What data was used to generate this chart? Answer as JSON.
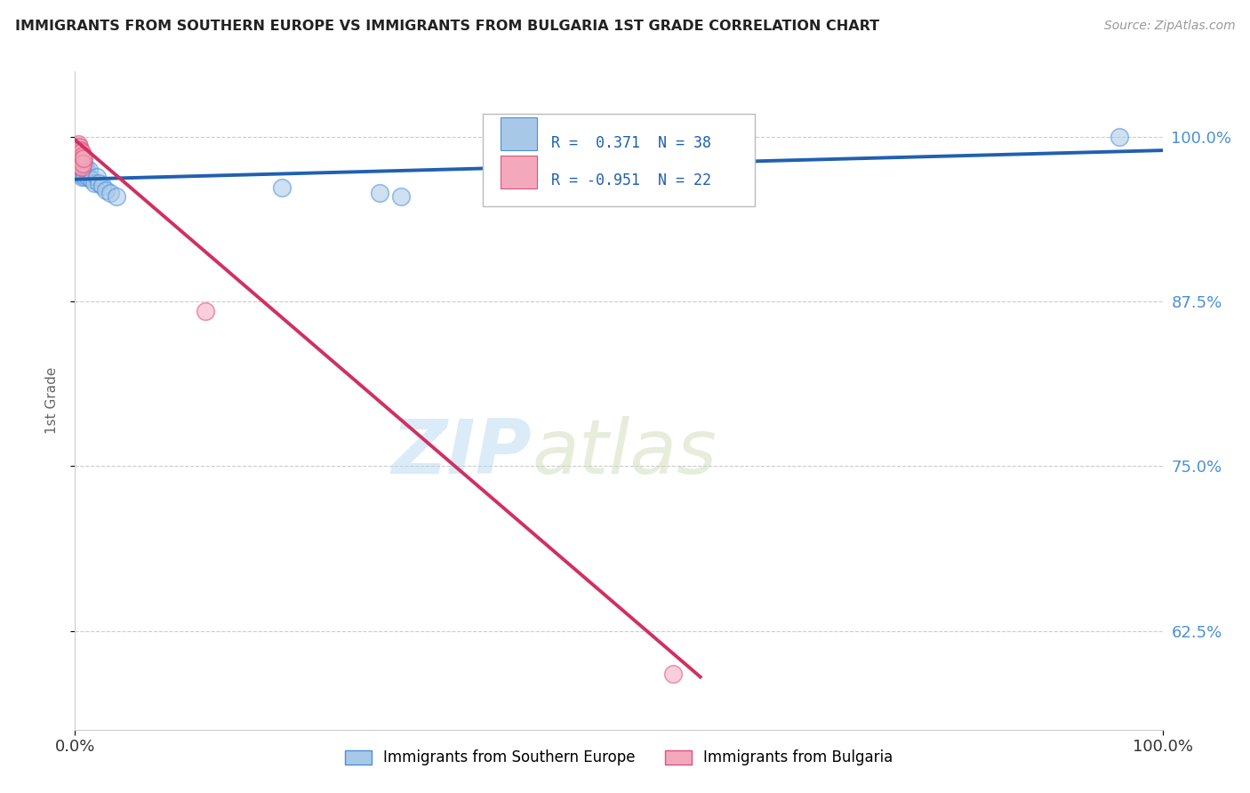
{
  "title": "IMMIGRANTS FROM SOUTHERN EUROPE VS IMMIGRANTS FROM BULGARIA 1ST GRADE CORRELATION CHART",
  "source_text": "Source: ZipAtlas.com",
  "ylabel": "1st Grade",
  "xlim": [
    0,
    1.0
  ],
  "ylim": [
    0.55,
    1.05
  ],
  "xticks": [
    0.0,
    1.0
  ],
  "xticklabels": [
    "0.0%",
    "100.0%"
  ],
  "yticks": [
    0.625,
    0.75,
    0.875,
    1.0
  ],
  "yticklabels": [
    "62.5%",
    "75.0%",
    "87.5%",
    "100.0%"
  ],
  "blue_color": "#a8c8e8",
  "pink_color": "#f4a8bc",
  "blue_edge_color": "#4a90d9",
  "pink_edge_color": "#e05080",
  "blue_line_color": "#2060b0",
  "pink_line_color": "#d03060",
  "legend_R_blue": " 0.371",
  "legend_N_blue": "38",
  "legend_R_pink": "-0.951",
  "legend_N_pink": "22",
  "legend_color": "#2060b0",
  "watermark_zip": "ZIP",
  "watermark_atlas": "atlas",
  "right_tick_color": "#4a90d9",
  "blue_scatter_x": [
    0.0008,
    0.001,
    0.0015,
    0.002,
    0.002,
    0.003,
    0.003,
    0.003,
    0.004,
    0.004,
    0.004,
    0.005,
    0.005,
    0.005,
    0.006,
    0.006,
    0.006,
    0.007,
    0.007,
    0.008,
    0.008,
    0.009,
    0.009,
    0.01,
    0.012,
    0.013,
    0.015,
    0.018,
    0.02,
    0.022,
    0.025,
    0.028,
    0.032,
    0.038,
    0.19,
    0.28,
    0.3,
    0.96
  ],
  "blue_scatter_y": [
    0.985,
    0.982,
    0.978,
    0.988,
    0.975,
    0.993,
    0.985,
    0.975,
    0.99,
    0.982,
    0.975,
    0.988,
    0.98,
    0.972,
    0.985,
    0.978,
    0.97,
    0.983,
    0.975,
    0.98,
    0.972,
    0.978,
    0.97,
    0.975,
    0.97,
    0.975,
    0.968,
    0.965,
    0.97,
    0.965,
    0.963,
    0.96,
    0.958,
    0.955,
    0.962,
    0.958,
    0.955,
    1.0
  ],
  "pink_scatter_x": [
    0.0008,
    0.001,
    0.0015,
    0.002,
    0.002,
    0.003,
    0.003,
    0.003,
    0.004,
    0.004,
    0.004,
    0.005,
    0.005,
    0.005,
    0.006,
    0.006,
    0.006,
    0.007,
    0.007,
    0.008,
    0.12,
    0.55
  ],
  "pink_scatter_y": [
    0.99,
    0.988,
    0.985,
    0.992,
    0.985,
    0.995,
    0.99,
    0.983,
    0.993,
    0.988,
    0.982,
    0.99,
    0.985,
    0.978,
    0.989,
    0.983,
    0.977,
    0.986,
    0.98,
    0.984,
    0.868,
    0.592
  ],
  "blue_trend_x": [
    0.0,
    1.0
  ],
  "blue_trend_y": [
    0.968,
    0.99
  ],
  "pink_trend_x": [
    0.0,
    0.575
  ],
  "pink_trend_y": [
    0.998,
    0.59
  ]
}
